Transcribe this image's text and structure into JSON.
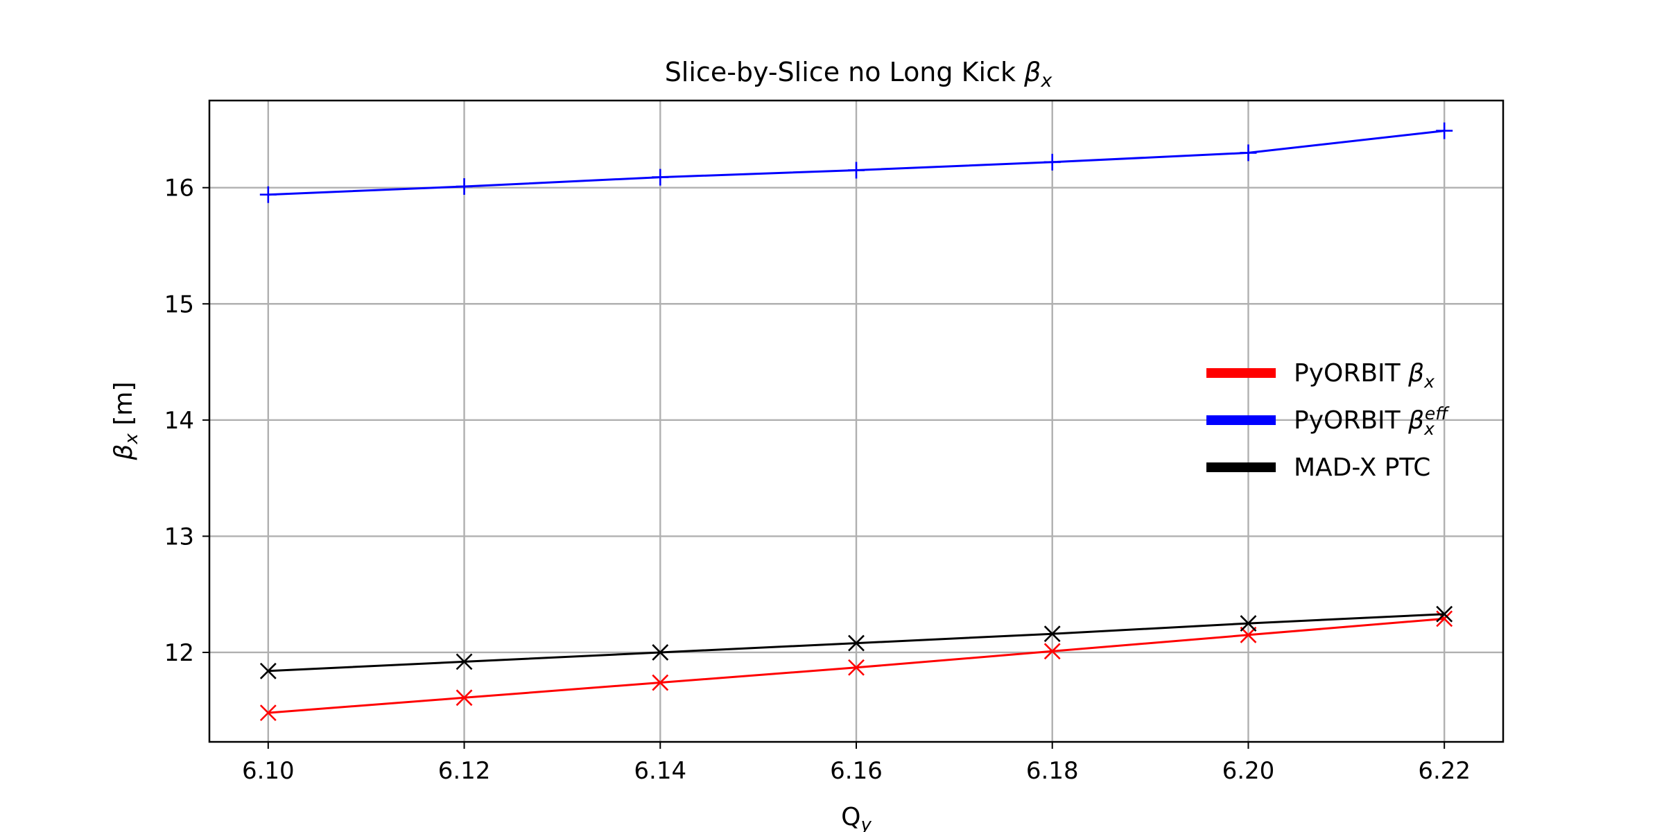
{
  "chart_data": {
    "type": "line",
    "title": "Slice-by-Slice no Long Kick",
    "title_symbol": {
      "base": "β",
      "sub": "x"
    },
    "xlabel": {
      "base": "Q",
      "sub": "y"
    },
    "ylabel": {
      "base": "β",
      "sub": "x",
      "unit": " [m]"
    },
    "xlim": [
      6.094,
      6.226
    ],
    "ylim": [
      11.23,
      16.75
    ],
    "xticks": [
      6.1,
      6.12,
      6.14,
      6.16,
      6.18,
      6.2,
      6.22
    ],
    "xtick_labels": [
      "6.10",
      "6.12",
      "6.14",
      "6.16",
      "6.18",
      "6.20",
      "6.22"
    ],
    "yticks": [
      12,
      13,
      14,
      15,
      16
    ],
    "ytick_labels": [
      "12",
      "13",
      "14",
      "15",
      "16"
    ],
    "grid": true,
    "legend_position": "center-right",
    "x": [
      6.1,
      6.12,
      6.14,
      6.16,
      6.18,
      6.2,
      6.22
    ],
    "series": [
      {
        "legend_base": "PyORBIT ",
        "legend_symbol": "β",
        "legend_sub": "x",
        "legend_sup": "",
        "color": "#ff0000",
        "marker": "x",
        "values": [
          11.48,
          11.61,
          11.74,
          11.87,
          12.01,
          12.15,
          12.29
        ]
      },
      {
        "legend_base": "PyORBIT ",
        "legend_symbol": "β",
        "legend_sub": "x",
        "legend_sup": "eff",
        "color": "#0000ff",
        "marker": "+",
        "values": [
          15.94,
          16.01,
          16.09,
          16.15,
          16.22,
          16.3,
          16.49
        ]
      },
      {
        "legend_base": "MAD-X PTC",
        "legend_symbol": "",
        "legend_sub": "",
        "legend_sup": "",
        "color": "#000000",
        "marker": "x",
        "values": [
          11.84,
          11.92,
          12.0,
          12.08,
          12.16,
          12.25,
          12.33
        ]
      }
    ]
  }
}
